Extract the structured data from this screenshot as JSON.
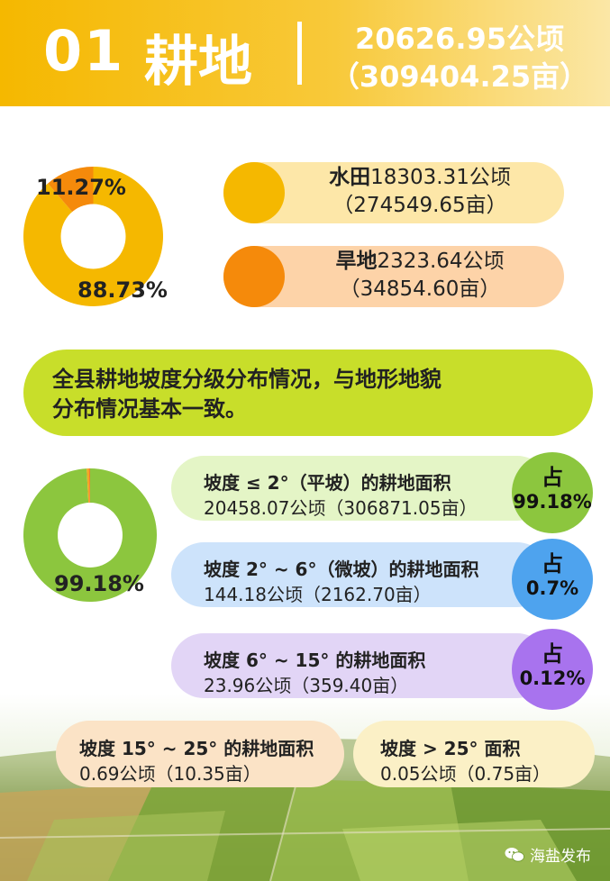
{
  "header": {
    "number": "01",
    "title": "耕地",
    "total_ha": "20626.95公顷",
    "total_mu": "（309404.25亩）"
  },
  "composition": {
    "donut_labels": [
      "11.27%",
      "88.73%"
    ],
    "paddy": {
      "label": "水田",
      "ha": "18303.31公顷",
      "mu": "（274549.65亩）",
      "color": "#f5b800"
    },
    "dry": {
      "label": "旱地",
      "ha": "2323.64公顷",
      "mu": "（34854.60亩）",
      "color": "#f58a0b"
    }
  },
  "banner": {
    "line1": "全县耕地坡度分级分布情况，与地形地貌",
    "line2": "分布情况基本一致。"
  },
  "slope": {
    "donut_label": "99.18%",
    "items": [
      {
        "title": "坡度 ≤ 2°（平坡）的耕地面积",
        "value": "20458.07公顷（306871.05亩）",
        "badge_top": "占",
        "badge_pct": "99.18%",
        "bg": "#e4f5c6",
        "badge_color": "#8cc63e"
      },
      {
        "title": "坡度 2° ~ 6°（微坡）的耕地面积",
        "value": "144.18公顷（2162.70亩）",
        "badge_top": "占",
        "badge_pct": "0.7%",
        "bg": "#cde3fb",
        "badge_color": "#4ea3ee"
      },
      {
        "title": "坡度 6° ~ 15° 的耕地面积",
        "value": "23.96公顷（359.40亩）",
        "badge_top": "占",
        "badge_pct": "0.12%",
        "bg": "#e2d5f6",
        "badge_color": "#a873ee"
      },
      {
        "title": "坡度 15° ~ 25° 的耕地面积",
        "value": "0.69公顷（10.35亩）"
      },
      {
        "title": "坡度 > 25° 面积",
        "value": "0.05公顷（0.75亩）"
      }
    ]
  },
  "chart_data": [
    {
      "type": "pie",
      "categories": [
        "水田",
        "旱地"
      ],
      "values": [
        88.73,
        11.27
      ],
      "colors": [
        "#f5b800",
        "#f58a0b"
      ]
    },
    {
      "type": "pie",
      "categories": [
        "坡度 ≤ 2°",
        "坡度 2° ~ 6°",
        "坡度 6° ~ 15°"
      ],
      "values": [
        99.18,
        0.7,
        0.12
      ],
      "colors": [
        "#8cc63e",
        "#f5a623",
        "#e84c3d"
      ]
    }
  ],
  "footer": {
    "logo_icon": "wechat-icon",
    "account": "海盐发布"
  }
}
